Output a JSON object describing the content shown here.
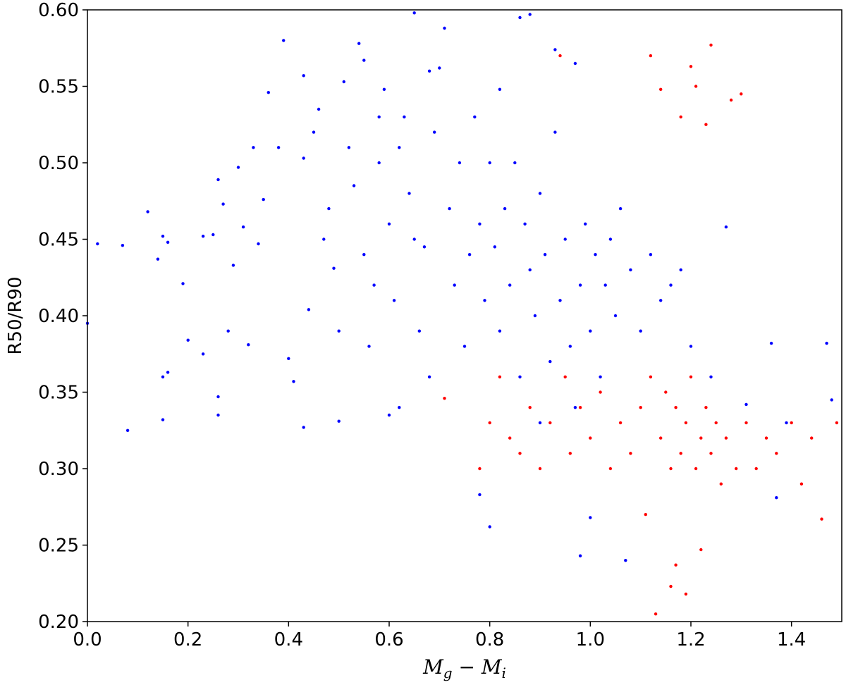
{
  "chart_data": {
    "type": "scatter",
    "title": "",
    "xlabel": "M_g − M_i",
    "xlabel_parts": {
      "main1": "M",
      "sub1": "g",
      "op": " − ",
      "main2": "M",
      "sub2": "i"
    },
    "ylabel": "R50/R90",
    "xlim": [
      0.0,
      1.5
    ],
    "ylim": [
      0.2,
      0.6
    ],
    "xticks": [
      0.0,
      0.2,
      0.4,
      0.6,
      0.8,
      1.0,
      1.2,
      1.4
    ],
    "yticks": [
      0.2,
      0.25,
      0.3,
      0.35,
      0.4,
      0.45,
      0.5,
      0.55,
      0.6
    ],
    "xtick_labels": [
      "0.0",
      "0.2",
      "0.4",
      "0.6",
      "0.8",
      "1.0",
      "1.2",
      "1.4"
    ],
    "ytick_labels": [
      "0.20",
      "0.25",
      "0.30",
      "0.35",
      "0.40",
      "0.45",
      "0.50",
      "0.55",
      "0.60"
    ],
    "grid": false,
    "legend": "none",
    "series": [
      {
        "color": "#0000ff",
        "points": [
          [
            0.0,
            0.395
          ],
          [
            0.02,
            0.447
          ],
          [
            0.07,
            0.446
          ],
          [
            0.08,
            0.325
          ],
          [
            0.12,
            0.468
          ],
          [
            0.14,
            0.437
          ],
          [
            0.15,
            0.452
          ],
          [
            0.15,
            0.36
          ],
          [
            0.15,
            0.332
          ],
          [
            0.16,
            0.448
          ],
          [
            0.16,
            0.363
          ],
          [
            0.19,
            0.421
          ],
          [
            0.2,
            0.384
          ],
          [
            0.23,
            0.375
          ],
          [
            0.23,
            0.452
          ],
          [
            0.25,
            0.453
          ],
          [
            0.26,
            0.489
          ],
          [
            0.26,
            0.347
          ],
          [
            0.26,
            0.335
          ],
          [
            0.27,
            0.473
          ],
          [
            0.28,
            0.39
          ],
          [
            0.29,
            0.433
          ],
          [
            0.3,
            0.497
          ],
          [
            0.31,
            0.458
          ],
          [
            0.32,
            0.381
          ],
          [
            0.33,
            0.51
          ],
          [
            0.34,
            0.447
          ],
          [
            0.35,
            0.476
          ],
          [
            0.36,
            0.546
          ],
          [
            0.38,
            0.51
          ],
          [
            0.39,
            0.58
          ],
          [
            0.4,
            0.372
          ],
          [
            0.41,
            0.357
          ],
          [
            0.43,
            0.503
          ],
          [
            0.43,
            0.557
          ],
          [
            0.43,
            0.327
          ],
          [
            0.44,
            0.404
          ],
          [
            0.45,
            0.52
          ],
          [
            0.46,
            0.535
          ],
          [
            0.47,
            0.45
          ],
          [
            0.48,
            0.47
          ],
          [
            0.49,
            0.431
          ],
          [
            0.5,
            0.331
          ],
          [
            0.5,
            0.39
          ],
          [
            0.51,
            0.553
          ],
          [
            0.52,
            0.51
          ],
          [
            0.53,
            0.485
          ],
          [
            0.54,
            0.578
          ],
          [
            0.55,
            0.44
          ],
          [
            0.55,
            0.567
          ],
          [
            0.56,
            0.38
          ],
          [
            0.57,
            0.42
          ],
          [
            0.58,
            0.53
          ],
          [
            0.58,
            0.5
          ],
          [
            0.59,
            0.548
          ],
          [
            0.6,
            0.46
          ],
          [
            0.6,
            0.335
          ],
          [
            0.61,
            0.41
          ],
          [
            0.62,
            0.34
          ],
          [
            0.62,
            0.51
          ],
          [
            0.63,
            0.53
          ],
          [
            0.64,
            0.48
          ],
          [
            0.65,
            0.598
          ],
          [
            0.65,
            0.45
          ],
          [
            0.66,
            0.39
          ],
          [
            0.67,
            0.445
          ],
          [
            0.68,
            0.56
          ],
          [
            0.68,
            0.36
          ],
          [
            0.69,
            0.52
          ],
          [
            0.7,
            0.562
          ],
          [
            0.71,
            0.588
          ],
          [
            0.72,
            0.47
          ],
          [
            0.73,
            0.42
          ],
          [
            0.74,
            0.5
          ],
          [
            0.75,
            0.38
          ],
          [
            0.76,
            0.44
          ],
          [
            0.77,
            0.53
          ],
          [
            0.78,
            0.46
          ],
          [
            0.78,
            0.283
          ],
          [
            0.79,
            0.41
          ],
          [
            0.8,
            0.262
          ],
          [
            0.8,
            0.5
          ],
          [
            0.81,
            0.445
          ],
          [
            0.82,
            0.39
          ],
          [
            0.82,
            0.548
          ],
          [
            0.83,
            0.47
          ],
          [
            0.84,
            0.42
          ],
          [
            0.85,
            0.5
          ],
          [
            0.86,
            0.595
          ],
          [
            0.86,
            0.36
          ],
          [
            0.87,
            0.46
          ],
          [
            0.88,
            0.597
          ],
          [
            0.88,
            0.43
          ],
          [
            0.89,
            0.4
          ],
          [
            0.9,
            0.48
          ],
          [
            0.9,
            0.33
          ],
          [
            0.91,
            0.44
          ],
          [
            0.92,
            0.37
          ],
          [
            0.93,
            0.574
          ],
          [
            0.93,
            0.52
          ],
          [
            0.94,
            0.41
          ],
          [
            0.95,
            0.45
          ],
          [
            0.96,
            0.38
          ],
          [
            0.97,
            0.565
          ],
          [
            0.97,
            0.34
          ],
          [
            0.98,
            0.243
          ],
          [
            0.98,
            0.42
          ],
          [
            0.99,
            0.46
          ],
          [
            1.0,
            0.39
          ],
          [
            1.0,
            0.268
          ],
          [
            1.01,
            0.44
          ],
          [
            1.02,
            0.36
          ],
          [
            1.03,
            0.42
          ],
          [
            1.04,
            0.45
          ],
          [
            1.05,
            0.4
          ],
          [
            1.06,
            0.47
          ],
          [
            1.07,
            0.24
          ],
          [
            1.08,
            0.43
          ],
          [
            1.1,
            0.39
          ],
          [
            1.12,
            0.44
          ],
          [
            1.14,
            0.41
          ],
          [
            1.16,
            0.42
          ],
          [
            1.18,
            0.43
          ],
          [
            1.2,
            0.38
          ],
          [
            1.24,
            0.36
          ],
          [
            1.27,
            0.458
          ],
          [
            1.31,
            0.342
          ],
          [
            1.36,
            0.382
          ],
          [
            1.37,
            0.281
          ],
          [
            1.39,
            0.33
          ],
          [
            1.47,
            0.382
          ],
          [
            1.48,
            0.345
          ]
        ]
      },
      {
        "color": "#ff0000",
        "points": [
          [
            0.71,
            0.346
          ],
          [
            0.78,
            0.3
          ],
          [
            0.8,
            0.33
          ],
          [
            0.82,
            0.36
          ],
          [
            0.84,
            0.32
          ],
          [
            0.86,
            0.31
          ],
          [
            0.88,
            0.34
          ],
          [
            0.9,
            0.3
          ],
          [
            0.92,
            0.33
          ],
          [
            0.94,
            0.57
          ],
          [
            0.95,
            0.36
          ],
          [
            0.96,
            0.31
          ],
          [
            0.98,
            0.34
          ],
          [
            1.0,
            0.32
          ],
          [
            1.02,
            0.35
          ],
          [
            1.04,
            0.3
          ],
          [
            1.06,
            0.33
          ],
          [
            1.08,
            0.31
          ],
          [
            1.1,
            0.34
          ],
          [
            1.11,
            0.27
          ],
          [
            1.12,
            0.57
          ],
          [
            1.12,
            0.36
          ],
          [
            1.13,
            0.205
          ],
          [
            1.14,
            0.32
          ],
          [
            1.14,
            0.548
          ],
          [
            1.15,
            0.35
          ],
          [
            1.16,
            0.3
          ],
          [
            1.16,
            0.223
          ],
          [
            1.17,
            0.34
          ],
          [
            1.17,
            0.237
          ],
          [
            1.18,
            0.31
          ],
          [
            1.18,
            0.53
          ],
          [
            1.19,
            0.33
          ],
          [
            1.19,
            0.218
          ],
          [
            1.2,
            0.36
          ],
          [
            1.2,
            0.563
          ],
          [
            1.21,
            0.3
          ],
          [
            1.21,
            0.55
          ],
          [
            1.22,
            0.32
          ],
          [
            1.22,
            0.247
          ],
          [
            1.23,
            0.34
          ],
          [
            1.23,
            0.525
          ],
          [
            1.24,
            0.31
          ],
          [
            1.24,
            0.577
          ],
          [
            1.25,
            0.33
          ],
          [
            1.26,
            0.29
          ],
          [
            1.27,
            0.32
          ],
          [
            1.28,
            0.541
          ],
          [
            1.29,
            0.3
          ],
          [
            1.3,
            0.545
          ],
          [
            1.31,
            0.33
          ],
          [
            1.33,
            0.3
          ],
          [
            1.35,
            0.32
          ],
          [
            1.37,
            0.31
          ],
          [
            1.4,
            0.33
          ],
          [
            1.42,
            0.29
          ],
          [
            1.44,
            0.32
          ],
          [
            1.46,
            0.267
          ],
          [
            1.49,
            0.33
          ]
        ]
      }
    ]
  }
}
